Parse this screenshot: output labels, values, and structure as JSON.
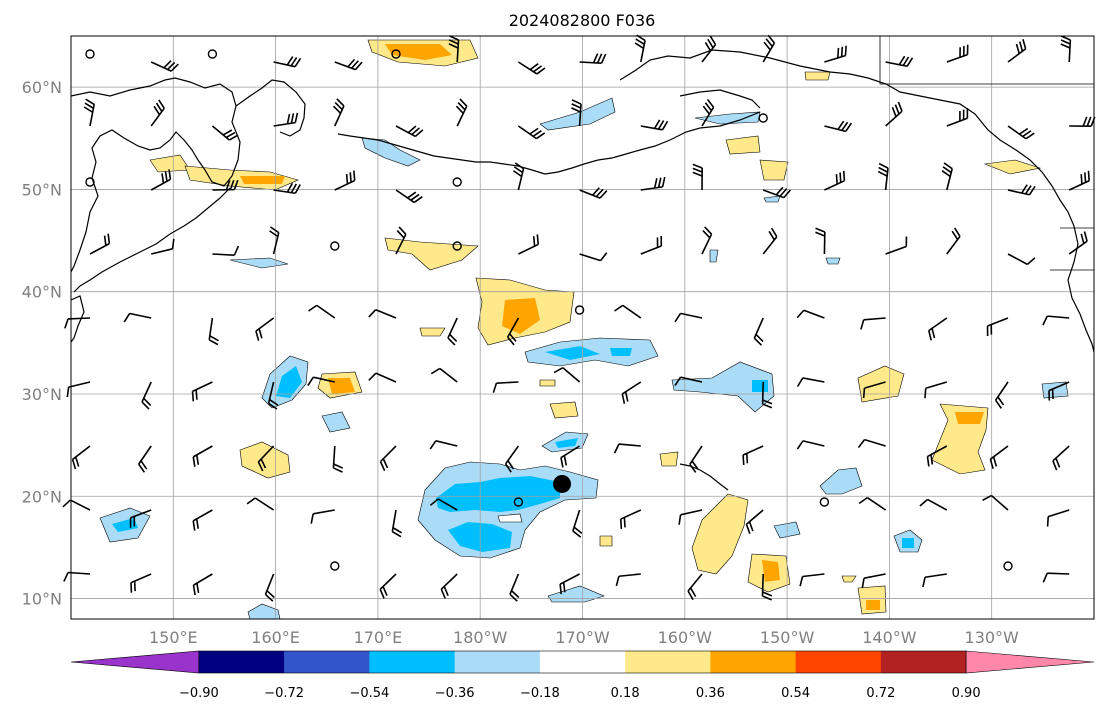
{
  "title": "2024082800 F036",
  "map": {
    "lon_ticks": [
      "150°E",
      "160°E",
      "170°E",
      "180°W",
      "170°W",
      "160°W",
      "150°W",
      "140°W",
      "130°W"
    ],
    "lat_ticks": [
      "60°N",
      "50°N",
      "40°N",
      "30°N",
      "20°N",
      "10°N"
    ],
    "extent": {
      "lon_min": 140,
      "lon_max": 240,
      "lat_min": 8,
      "lat_max": 65
    },
    "gridlines": true,
    "storm_marker": {
      "lon": 188.0,
      "lat": 21.2,
      "label": ""
    }
  },
  "colorbar": {
    "labels": [
      "−0.90",
      "−0.72",
      "−0.54",
      "−0.36",
      "−0.18",
      "0.18",
      "0.36",
      "0.54",
      "0.72",
      "0.90"
    ],
    "colors": [
      "#9933cc",
      "#000080",
      "#3355cc",
      "#00bfff",
      "#aadcf8",
      "#ffffff",
      "#ffe98a",
      "#ffa500",
      "#ff4500",
      "#b22222",
      "#ff88aa"
    ],
    "extend": "both"
  },
  "colors": {
    "coast": "#000000",
    "grid": "#a0a0a0",
    "pos_light": "#ffe98a",
    "pos_mid": "#ffa500",
    "neg_light": "#aadcf8",
    "neg_mid": "#00bfff"
  }
}
